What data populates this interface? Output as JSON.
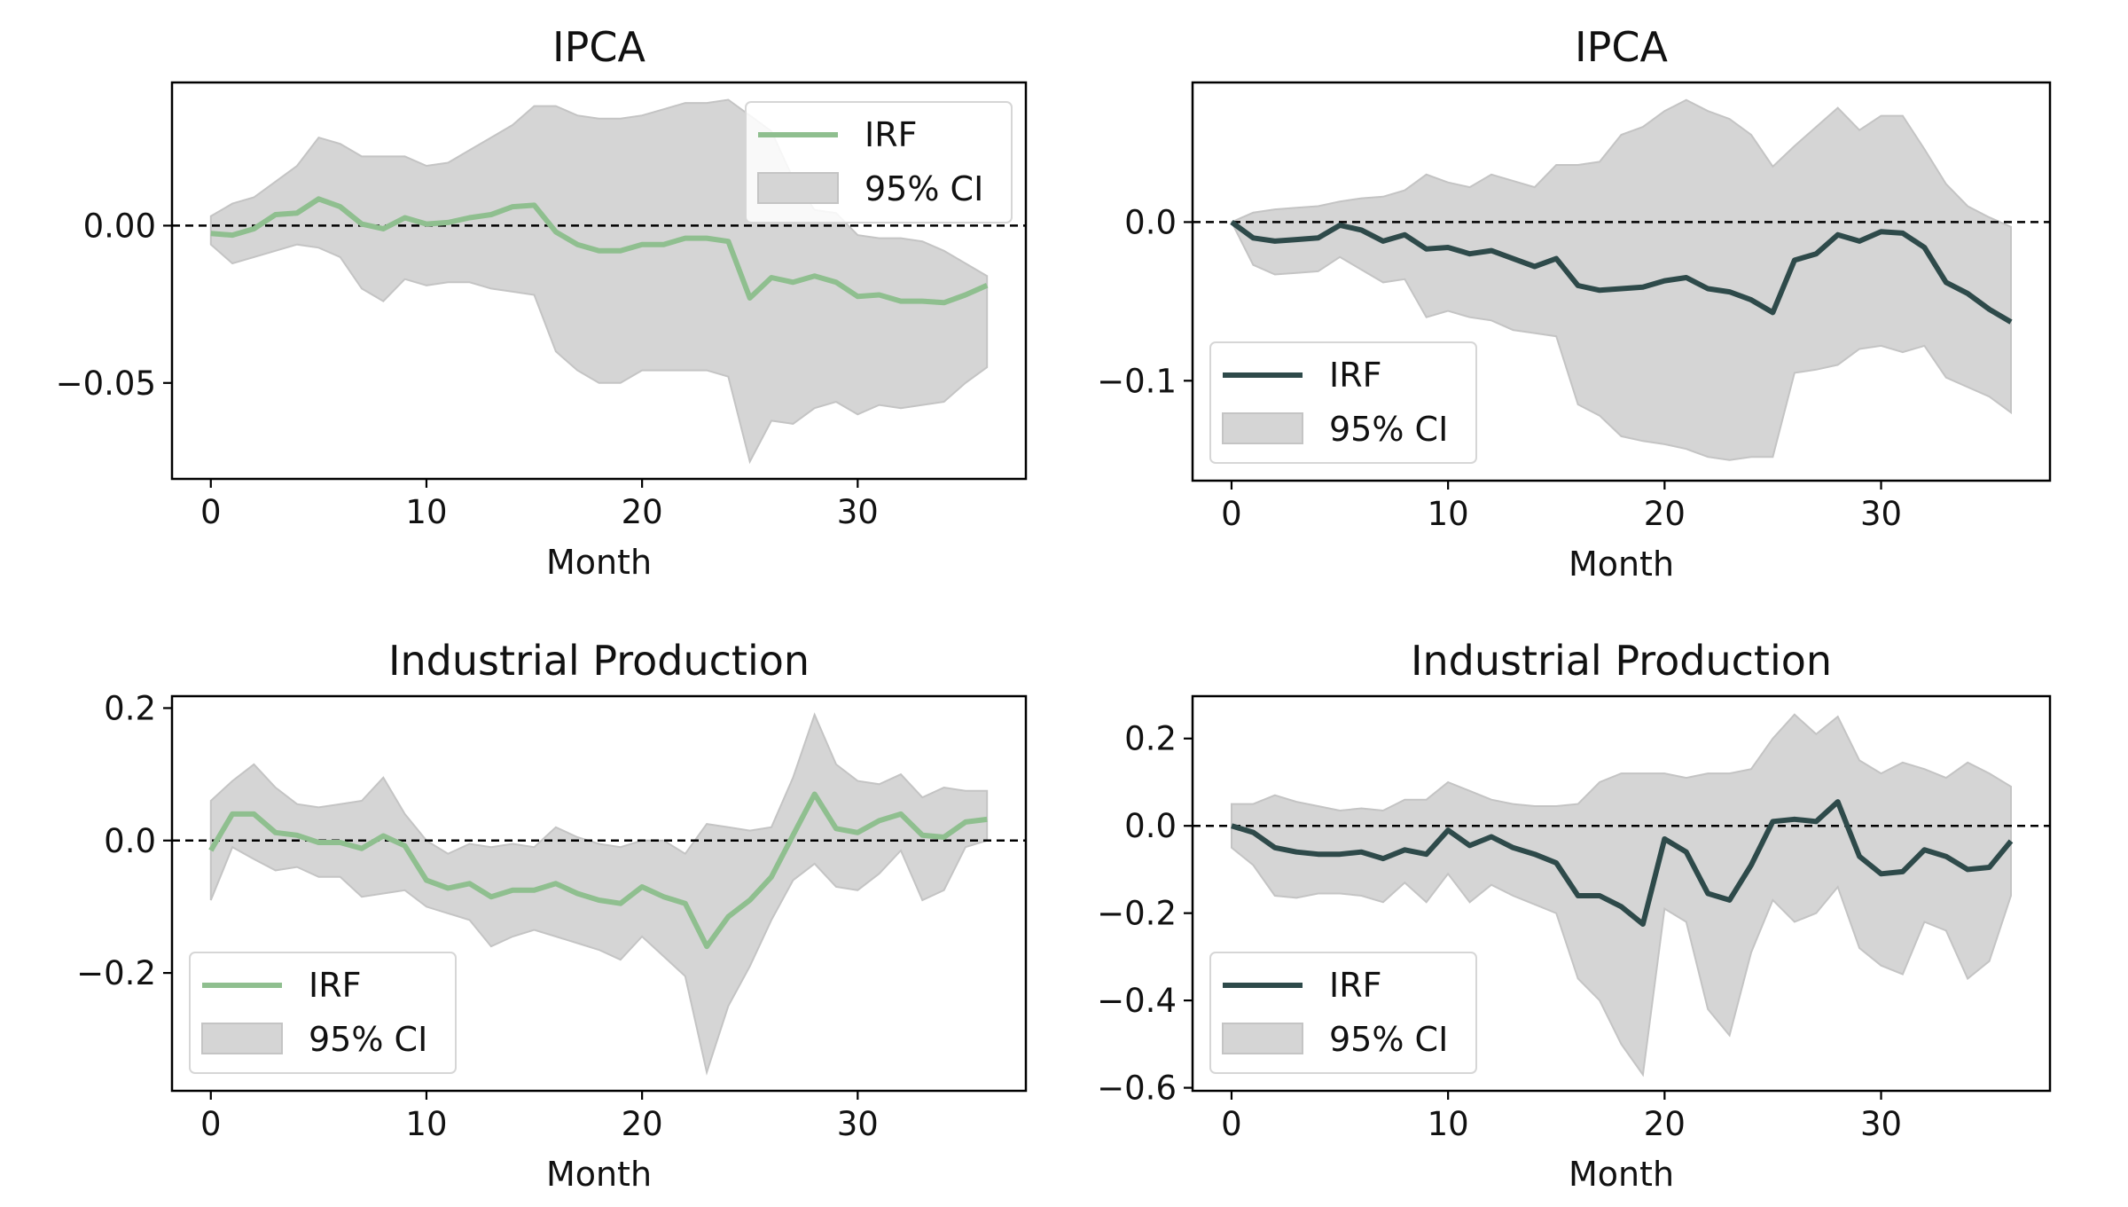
{
  "chart_data": [
    {
      "type": "line",
      "title": "IPCA",
      "xlabel": "Month",
      "ylabel": "",
      "xlim": [
        -1.8,
        37.8
      ],
      "ylim": [
        -0.0805,
        0.0455
      ],
      "xticks": [
        0,
        10,
        20,
        30
      ],
      "yticks": [
        0.0,
        -0.05
      ],
      "ytick_labels": [
        "0.00",
        "−0.05"
      ],
      "color": "#8fbf8f",
      "zero_line": true,
      "legend": {
        "position": "top-right",
        "entries": [
          "IRF",
          "95% CI"
        ]
      },
      "x": [
        0,
        1,
        2,
        3,
        4,
        5,
        6,
        7,
        8,
        9,
        10,
        11,
        12,
        13,
        14,
        15,
        16,
        17,
        18,
        19,
        20,
        21,
        22,
        23,
        24,
        25,
        26,
        27,
        28,
        29,
        30,
        31,
        32,
        33,
        34,
        35,
        36
      ],
      "series": [
        {
          "name": "IRF",
          "values": [
            -0.0025,
            -0.003,
            -0.001,
            0.0035,
            0.004,
            0.0085,
            0.006,
            0.0005,
            -0.001,
            0.0025,
            0.0005,
            0.001,
            0.0025,
            0.0035,
            0.006,
            0.0065,
            -0.002,
            -0.006,
            -0.008,
            -0.008,
            -0.006,
            -0.006,
            -0.004,
            -0.004,
            -0.005,
            -0.023,
            -0.0165,
            -0.018,
            -0.016,
            -0.018,
            -0.0225,
            -0.022,
            -0.024,
            -0.024,
            -0.0245,
            -0.022,
            -0.019
          ]
        },
        {
          "name": "95% CI lower",
          "values": [
            -0.006,
            -0.012,
            -0.01,
            -0.008,
            -0.006,
            -0.007,
            -0.01,
            -0.02,
            -0.024,
            -0.017,
            -0.019,
            -0.018,
            -0.018,
            -0.02,
            -0.021,
            -0.022,
            -0.04,
            -0.046,
            -0.05,
            -0.05,
            -0.046,
            -0.046,
            -0.046,
            -0.046,
            -0.048,
            -0.075,
            -0.062,
            -0.063,
            -0.058,
            -0.056,
            -0.06,
            -0.057,
            -0.058,
            -0.057,
            -0.056,
            -0.05,
            -0.045
          ]
        },
        {
          "name": "95% CI upper",
          "values": [
            0.003,
            0.007,
            0.009,
            0.014,
            0.019,
            0.028,
            0.026,
            0.022,
            0.022,
            0.022,
            0.019,
            0.02,
            0.024,
            0.028,
            0.032,
            0.038,
            0.038,
            0.035,
            0.034,
            0.034,
            0.035,
            0.037,
            0.039,
            0.039,
            0.04,
            0.035,
            0.03,
            0.015,
            0.005,
            0.004,
            -0.003,
            -0.004,
            -0.004,
            -0.005,
            -0.008,
            -0.012,
            -0.016
          ]
        }
      ]
    },
    {
      "type": "line",
      "title": "IPCA",
      "xlabel": "Month",
      "ylabel": "",
      "xlim": [
        -1.8,
        37.8
      ],
      "ylim": [
        -0.163,
        0.088
      ],
      "xticks": [
        0,
        10,
        20,
        30
      ],
      "yticks": [
        0.0,
        -0.1
      ],
      "ytick_labels": [
        "0.0",
        "−0.1"
      ],
      "color": "#2e4a4a",
      "zero_line": true,
      "legend": {
        "position": "bottom-left",
        "entries": [
          "IRF",
          "95% CI"
        ]
      },
      "x": [
        0,
        1,
        2,
        3,
        4,
        5,
        6,
        7,
        8,
        9,
        10,
        11,
        12,
        13,
        14,
        15,
        16,
        17,
        18,
        19,
        20,
        21,
        22,
        23,
        24,
        25,
        26,
        27,
        28,
        29,
        30,
        31,
        32,
        33,
        34,
        35,
        36
      ],
      "series": [
        {
          "name": "IRF",
          "values": [
            0,
            -0.01,
            -0.012,
            -0.011,
            -0.01,
            -0.002,
            -0.005,
            -0.012,
            -0.008,
            -0.017,
            -0.016,
            -0.02,
            -0.018,
            -0.023,
            -0.028,
            -0.023,
            -0.04,
            -0.043,
            -0.042,
            -0.041,
            -0.037,
            -0.035,
            -0.042,
            -0.044,
            -0.049,
            -0.057,
            -0.024,
            -0.02,
            -0.008,
            -0.012,
            -0.006,
            -0.007,
            -0.016,
            -0.038,
            -0.045,
            -0.055,
            -0.063
          ]
        },
        {
          "name": "95% CI lower",
          "values": [
            0,
            -0.027,
            -0.033,
            -0.032,
            -0.031,
            -0.022,
            -0.03,
            -0.038,
            -0.036,
            -0.06,
            -0.056,
            -0.06,
            -0.062,
            -0.068,
            -0.07,
            -0.072,
            -0.115,
            -0.122,
            -0.135,
            -0.138,
            -0.14,
            -0.143,
            -0.148,
            -0.15,
            -0.148,
            -0.148,
            -0.095,
            -0.093,
            -0.09,
            -0.08,
            -0.078,
            -0.082,
            -0.078,
            -0.098,
            -0.104,
            -0.11,
            -0.12
          ]
        },
        {
          "name": "95% CI upper",
          "values": [
            0,
            0.006,
            0.008,
            0.009,
            0.01,
            0.013,
            0.015,
            0.016,
            0.02,
            0.03,
            0.025,
            0.022,
            0.03,
            0.026,
            0.022,
            0.036,
            0.036,
            0.038,
            0.055,
            0.06,
            0.07,
            0.077,
            0.07,
            0.065,
            0.055,
            0.035,
            0.048,
            0.06,
            0.072,
            0.058,
            0.067,
            0.067,
            0.046,
            0.024,
            0.01,
            0.003,
            -0.003
          ]
        }
      ]
    },
    {
      "type": "line",
      "title": "Industrial Production",
      "xlabel": "Month",
      "ylabel": "",
      "xlim": [
        -1.8,
        37.8
      ],
      "ylim": [
        -0.378,
        0.218
      ],
      "xticks": [
        0,
        10,
        20,
        30
      ],
      "yticks": [
        0.2,
        0.0,
        -0.2
      ],
      "ytick_labels": [
        "0.2",
        "0.0",
        "−0.2"
      ],
      "color": "#8fbf8f",
      "zero_line": true,
      "legend": {
        "position": "bottom-left",
        "entries": [
          "IRF",
          "95% CI"
        ]
      },
      "x": [
        0,
        1,
        2,
        3,
        4,
        5,
        6,
        7,
        8,
        9,
        10,
        11,
        12,
        13,
        14,
        15,
        16,
        17,
        18,
        19,
        20,
        21,
        22,
        23,
        24,
        25,
        26,
        27,
        28,
        29,
        30,
        31,
        32,
        33,
        34,
        35,
        36
      ],
      "series": [
        {
          "name": "IRF",
          "values": [
            -0.015,
            0.04,
            0.04,
            0.012,
            0.008,
            -0.003,
            -0.003,
            -0.012,
            0.007,
            -0.008,
            -0.06,
            -0.072,
            -0.065,
            -0.085,
            -0.075,
            -0.075,
            -0.065,
            -0.08,
            -0.09,
            -0.095,
            -0.07,
            -0.085,
            -0.095,
            -0.16,
            -0.115,
            -0.09,
            -0.055,
            0.008,
            0.07,
            0.018,
            0.012,
            0.03,
            0.04,
            0.008,
            0.005,
            0.028,
            0.032
          ]
        },
        {
          "name": "95% CI lower",
          "values": [
            -0.09,
            -0.01,
            -0.028,
            -0.045,
            -0.04,
            -0.055,
            -0.055,
            -0.085,
            -0.08,
            -0.075,
            -0.1,
            -0.11,
            -0.12,
            -0.16,
            -0.145,
            -0.135,
            -0.145,
            -0.155,
            -0.165,
            -0.18,
            -0.145,
            -0.175,
            -0.205,
            -0.35,
            -0.25,
            -0.19,
            -0.12,
            -0.06,
            -0.035,
            -0.07,
            -0.075,
            -0.05,
            -0.015,
            -0.09,
            -0.075,
            -0.01,
            0.0
          ]
        },
        {
          "name": "95% CI upper",
          "values": [
            0.06,
            0.09,
            0.115,
            0.08,
            0.055,
            0.05,
            0.055,
            0.06,
            0.095,
            0.04,
            0.0,
            -0.02,
            -0.005,
            -0.01,
            -0.005,
            -0.01,
            0.02,
            0.005,
            -0.005,
            -0.01,
            0.0,
            0.0,
            -0.02,
            0.025,
            0.02,
            0.015,
            0.02,
            0.095,
            0.19,
            0.115,
            0.09,
            0.085,
            0.1,
            0.065,
            0.08,
            0.075,
            0.075
          ]
        }
      ]
    },
    {
      "type": "line",
      "title": "Industrial Production",
      "xlabel": "Month",
      "ylabel": "",
      "xlim": [
        -1.8,
        37.8
      ],
      "ylim": [
        -0.607,
        0.297
      ],
      "xticks": [
        0,
        10,
        20,
        30
      ],
      "yticks": [
        0.2,
        0.0,
        -0.2,
        -0.4,
        -0.6
      ],
      "ytick_labels": [
        "0.2",
        "0.0",
        "−0.2",
        "−0.4",
        "−0.6"
      ],
      "color": "#2e4a4a",
      "zero_line": true,
      "legend": {
        "position": "bottom-left",
        "entries": [
          "IRF",
          "95% CI"
        ]
      },
      "x": [
        0,
        1,
        2,
        3,
        4,
        5,
        6,
        7,
        8,
        9,
        10,
        11,
        12,
        13,
        14,
        15,
        16,
        17,
        18,
        19,
        20,
        21,
        22,
        23,
        24,
        25,
        26,
        27,
        28,
        29,
        30,
        31,
        32,
        33,
        34,
        35,
        36
      ],
      "series": [
        {
          "name": "IRF",
          "values": [
            0.0,
            -0.015,
            -0.05,
            -0.06,
            -0.065,
            -0.065,
            -0.06,
            -0.075,
            -0.055,
            -0.065,
            -0.01,
            -0.045,
            -0.025,
            -0.05,
            -0.065,
            -0.085,
            -0.16,
            -0.16,
            -0.185,
            -0.225,
            -0.03,
            -0.06,
            -0.155,
            -0.17,
            -0.09,
            0.01,
            0.015,
            0.01,
            0.055,
            -0.07,
            -0.11,
            -0.105,
            -0.055,
            -0.07,
            -0.1,
            -0.095,
            -0.035
          ]
        },
        {
          "name": "95% CI lower",
          "values": [
            -0.05,
            -0.09,
            -0.16,
            -0.165,
            -0.155,
            -0.155,
            -0.16,
            -0.175,
            -0.13,
            -0.175,
            -0.11,
            -0.175,
            -0.135,
            -0.16,
            -0.18,
            -0.2,
            -0.35,
            -0.4,
            -0.5,
            -0.57,
            -0.19,
            -0.22,
            -0.42,
            -0.48,
            -0.29,
            -0.17,
            -0.22,
            -0.2,
            -0.14,
            -0.28,
            -0.32,
            -0.34,
            -0.22,
            -0.24,
            -0.35,
            -0.31,
            -0.16
          ]
        },
        {
          "name": "95% CI upper",
          "values": [
            0.05,
            0.05,
            0.07,
            0.055,
            0.045,
            0.035,
            0.04,
            0.035,
            0.06,
            0.06,
            0.1,
            0.08,
            0.06,
            0.05,
            0.045,
            0.045,
            0.05,
            0.1,
            0.12,
            0.12,
            0.12,
            0.11,
            0.12,
            0.12,
            0.13,
            0.2,
            0.255,
            0.21,
            0.25,
            0.15,
            0.12,
            0.145,
            0.13,
            0.11,
            0.145,
            0.12,
            0.09
          ]
        }
      ]
    }
  ]
}
